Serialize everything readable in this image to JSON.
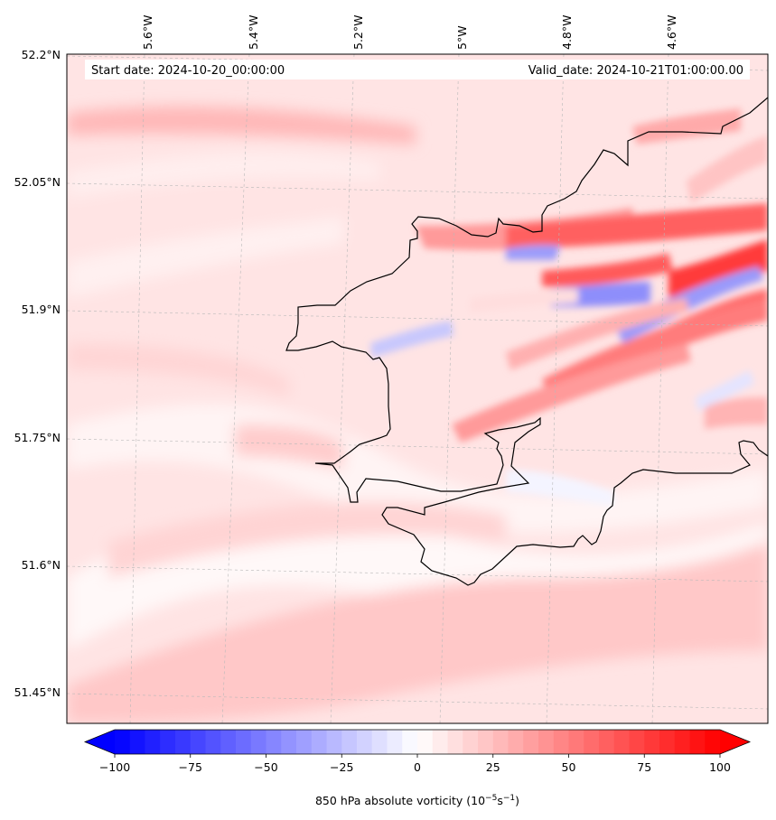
{
  "chart_data": {
    "type": "heatmap",
    "title": "",
    "variable_label": "850 hPa absolute vorticity",
    "units_label": "(10",
    "units_exp1": "−5",
    "units_mid": "s",
    "units_exp2": "−1",
    "units_close": ")",
    "start_date_label": "Start date: 2024-10-20_00:00:00",
    "valid_date_label": "Valid_date: 2024-10-21T01:00:00.00",
    "lon_ticks": [
      "5.6°W",
      "5.4°W",
      "5.2°W",
      "5°W",
      "4.8°W",
      "4.6°W"
    ],
    "lat_ticks": [
      "52.2°N",
      "52.05°N",
      "51.9°N",
      "51.75°N",
      "51.6°N",
      "51.45°N"
    ],
    "colorbar": {
      "min": -100,
      "max": 100,
      "ticks": [
        -100,
        -75,
        -50,
        -25,
        0,
        25,
        50,
        75,
        100
      ],
      "tick_labels": [
        "−100",
        "−75",
        "−50",
        "−25",
        "0",
        "25",
        "50",
        "75",
        "100"
      ],
      "levels": 40,
      "extend": "both",
      "colormap": "bwr",
      "low_color": "#0000ff",
      "mid_color": "#ffffff",
      "high_color": "#ff0000"
    },
    "grid": true
  }
}
